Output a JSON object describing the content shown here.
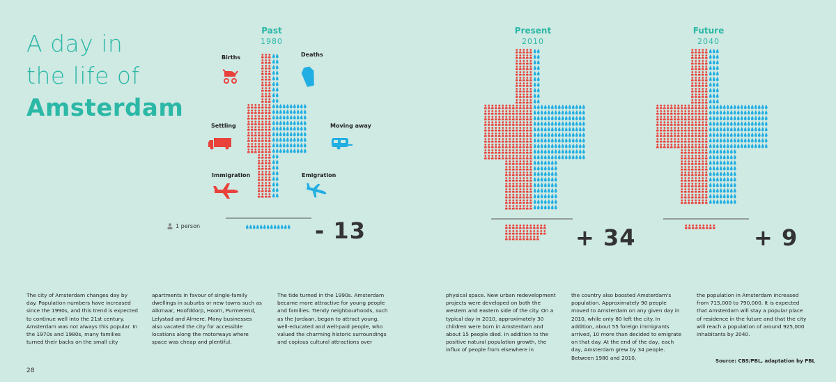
{
  "title": {
    "line1": "A day in",
    "line2": "the life of",
    "line3": "Amsterdam"
  },
  "charts": [
    {
      "period": "Past",
      "year": "1980",
      "net": "- 13"
    },
    {
      "period": "Present",
      "year": "2010",
      "net": "+ 34"
    },
    {
      "period": "Future",
      "year": "2040",
      "net": "+ 9"
    }
  ],
  "categories": {
    "births": "Births",
    "deaths": "Deaths",
    "settling": "Settling",
    "moving_away": "Moving away",
    "immigration": "Immigration",
    "emigration": "Emigration"
  },
  "legend": "1 person",
  "colors": {
    "background": "#cfe9e3",
    "accent": "#2bb8a6",
    "inflow": "#e8423b",
    "outflow": "#21aee2"
  },
  "icons": [
    "stroller-icon",
    "coffin-icon",
    "truck-icon",
    "caravan-icon",
    "airplane-icon"
  ],
  "columns": [
    "The city of Amsterdam changes day by day. Population numbers have increased since the 1990s, and this trend is expected to continue well into the 21st century. Amsterdam was not always this popular. In the 1970s and 1980s, many families turned their backs on the small city",
    "apartments in favour of single-family dwellings in suburbs or new towns such as Alkmaar, Hoofddorp, Hoorn, Purmerend, Lelystad and Almere. Many businesses also vacated the city for accessible locations along the motorways where space was cheap and plentiful.",
    "The tide turned in the 1990s. Amsterdam became more attractive for young people and families. Trendy neighbourhoods, such as the Jordaan, began to attract young, well-educated and well-paid people, who valued the charming historic surroundings and copious cultural attractions over",
    "physical space. New urban redevelopment projects were developed on both the western and eastern side of the city. On a typical day in 2010, approximately 30 children were born in Amsterdam and about 15 people died. In addition to the positive natural population growth, the influx of people from elsewhere in",
    "the country also boosted Amsterdam's population. Approximately 90 people moved to Amsterdam on any given day in 2010, while only 80 left the city. In addition, about 55 foreign immigrants arrived, 10 more than decided to emigrate on that day. At the end of the day, each day, Amsterdam grew by 34 people. Between 1980 and 2010,",
    "the population in Amsterdam increased from 715,000 to 790,000. It is expected that Amsterdam will stay a popular place of residence in the future and that the city will reach a population of around 925,000 inhabitants by 2040."
  ],
  "page_number": "28",
  "source": "Source: CBS/PBL, adaptation by PBL"
}
